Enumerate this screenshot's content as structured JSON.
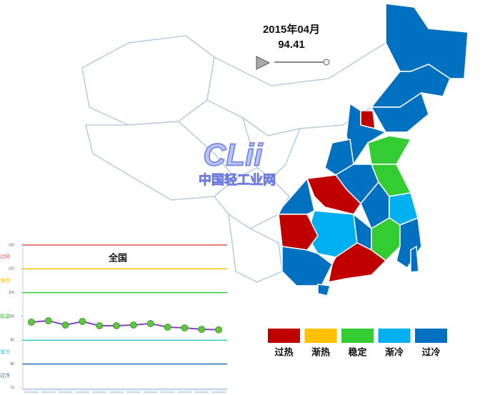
{
  "header": {
    "date": "2015年04月",
    "index": "94.41"
  },
  "watermark": {
    "logo": "CLii",
    "site": "中国轻工业网"
  },
  "legend": [
    {
      "label": "过热",
      "color": "#c00000"
    },
    {
      "label": "渐热",
      "color": "#ffc000"
    },
    {
      "label": "稳定",
      "color": "#33cc33"
    },
    {
      "label": "渐冷",
      "color": "#00b0f0"
    },
    {
      "label": "过冷",
      "color": "#0070c0"
    }
  ],
  "chart_data": {
    "type": "line",
    "title": "全国",
    "categories": [
      null,
      null,
      null,
      null,
      null,
      null,
      null,
      null,
      null,
      null,
      null,
      null
    ],
    "series": [
      {
        "color": "#8a3fc4",
        "marker_color": "#5cc83c",
        "values": [
          97.6,
          98.2,
          96.4,
          97.9,
          96.1,
          96.1,
          96.4,
          97.0,
          95.5,
          95.2,
          94.6,
          94.41
        ]
      }
    ],
    "ylim": [
      70,
      130
    ],
    "yticks": [
      70,
      80,
      90,
      100,
      110,
      120,
      130
    ],
    "zones": [
      {
        "label": "过热",
        "color": "#e05050",
        "ylim": [
          120,
          130
        ]
      },
      {
        "label": "渐热",
        "color": "#ffc000",
        "ylim": [
          110,
          120
        ]
      },
      {
        "label": "稳定",
        "color": "#33cc33",
        "ylim": [
          90,
          110
        ]
      },
      {
        "label": "渐冷",
        "color": "#30c8c8",
        "ylim": [
          80,
          90
        ]
      },
      {
        "label": "过冷",
        "color": "#1f6fb0",
        "ylim": [
          70,
          80
        ]
      }
    ]
  }
}
